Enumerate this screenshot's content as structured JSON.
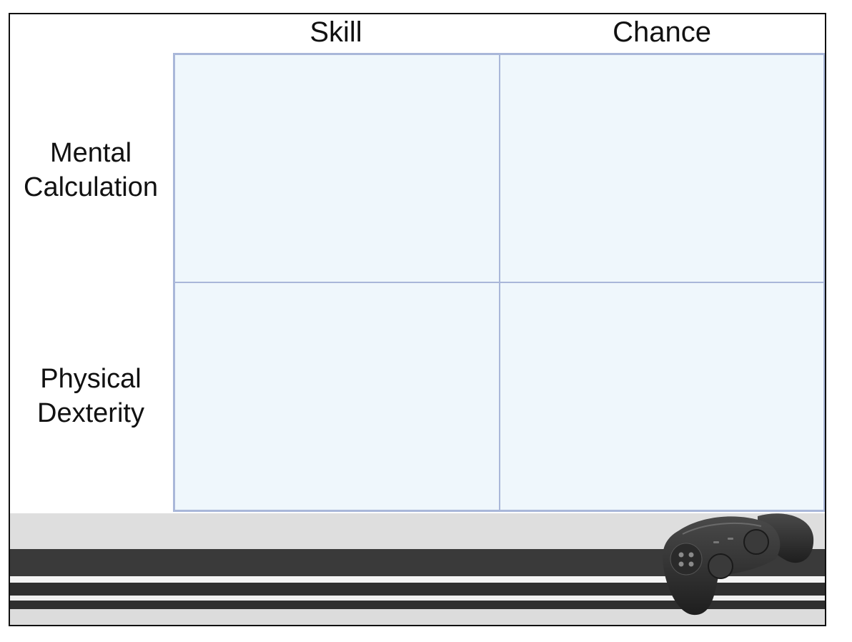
{
  "columns": {
    "skill": "Skill",
    "chance": "Chance"
  },
  "rows": {
    "mental": [
      "Mental",
      "Calculation"
    ],
    "physical": [
      "Physical",
      "Dexterity"
    ]
  },
  "decoration": {
    "icon": "game-controller-icon",
    "grid_color": "#a9b7d9",
    "cell_fill": "#eff7fc"
  }
}
